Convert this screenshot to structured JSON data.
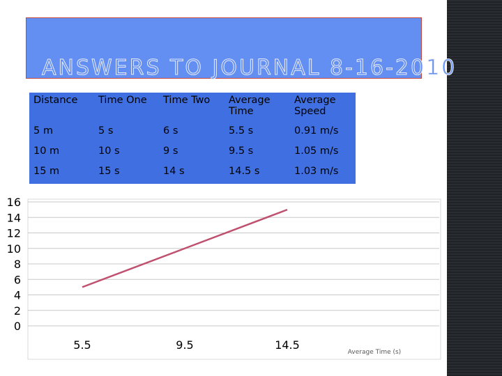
{
  "slide": {
    "title": "Answers to Journal 8-16-2010"
  },
  "table": {
    "headers": [
      "Distance",
      "Time One",
      "Time Two",
      "Average Time",
      "Average Speed"
    ],
    "rows": [
      [
        "5 m",
        "5 s",
        "6 s",
        "5.5 s",
        "0.91 m/s"
      ],
      [
        "10 m",
        "10 s",
        "9 s",
        "9.5 s",
        "1.05 m/s"
      ],
      [
        "15 m",
        "15 s",
        "14 s",
        "14.5 s",
        "1.03 m/s"
      ]
    ]
  },
  "chart_data": {
    "type": "line",
    "categories": [
      "5.5",
      "9.5",
      "14.5"
    ],
    "series": [
      {
        "values": [
          5,
          10,
          15
        ],
        "color": "#c0506f"
      }
    ],
    "xlabel": "Average Time (s)",
    "ylabel": "",
    "ylim": [
      0,
      16
    ],
    "yticks": [
      0,
      2,
      4,
      6,
      8,
      10,
      12,
      14,
      16
    ],
    "grid": true,
    "legend": "none"
  }
}
